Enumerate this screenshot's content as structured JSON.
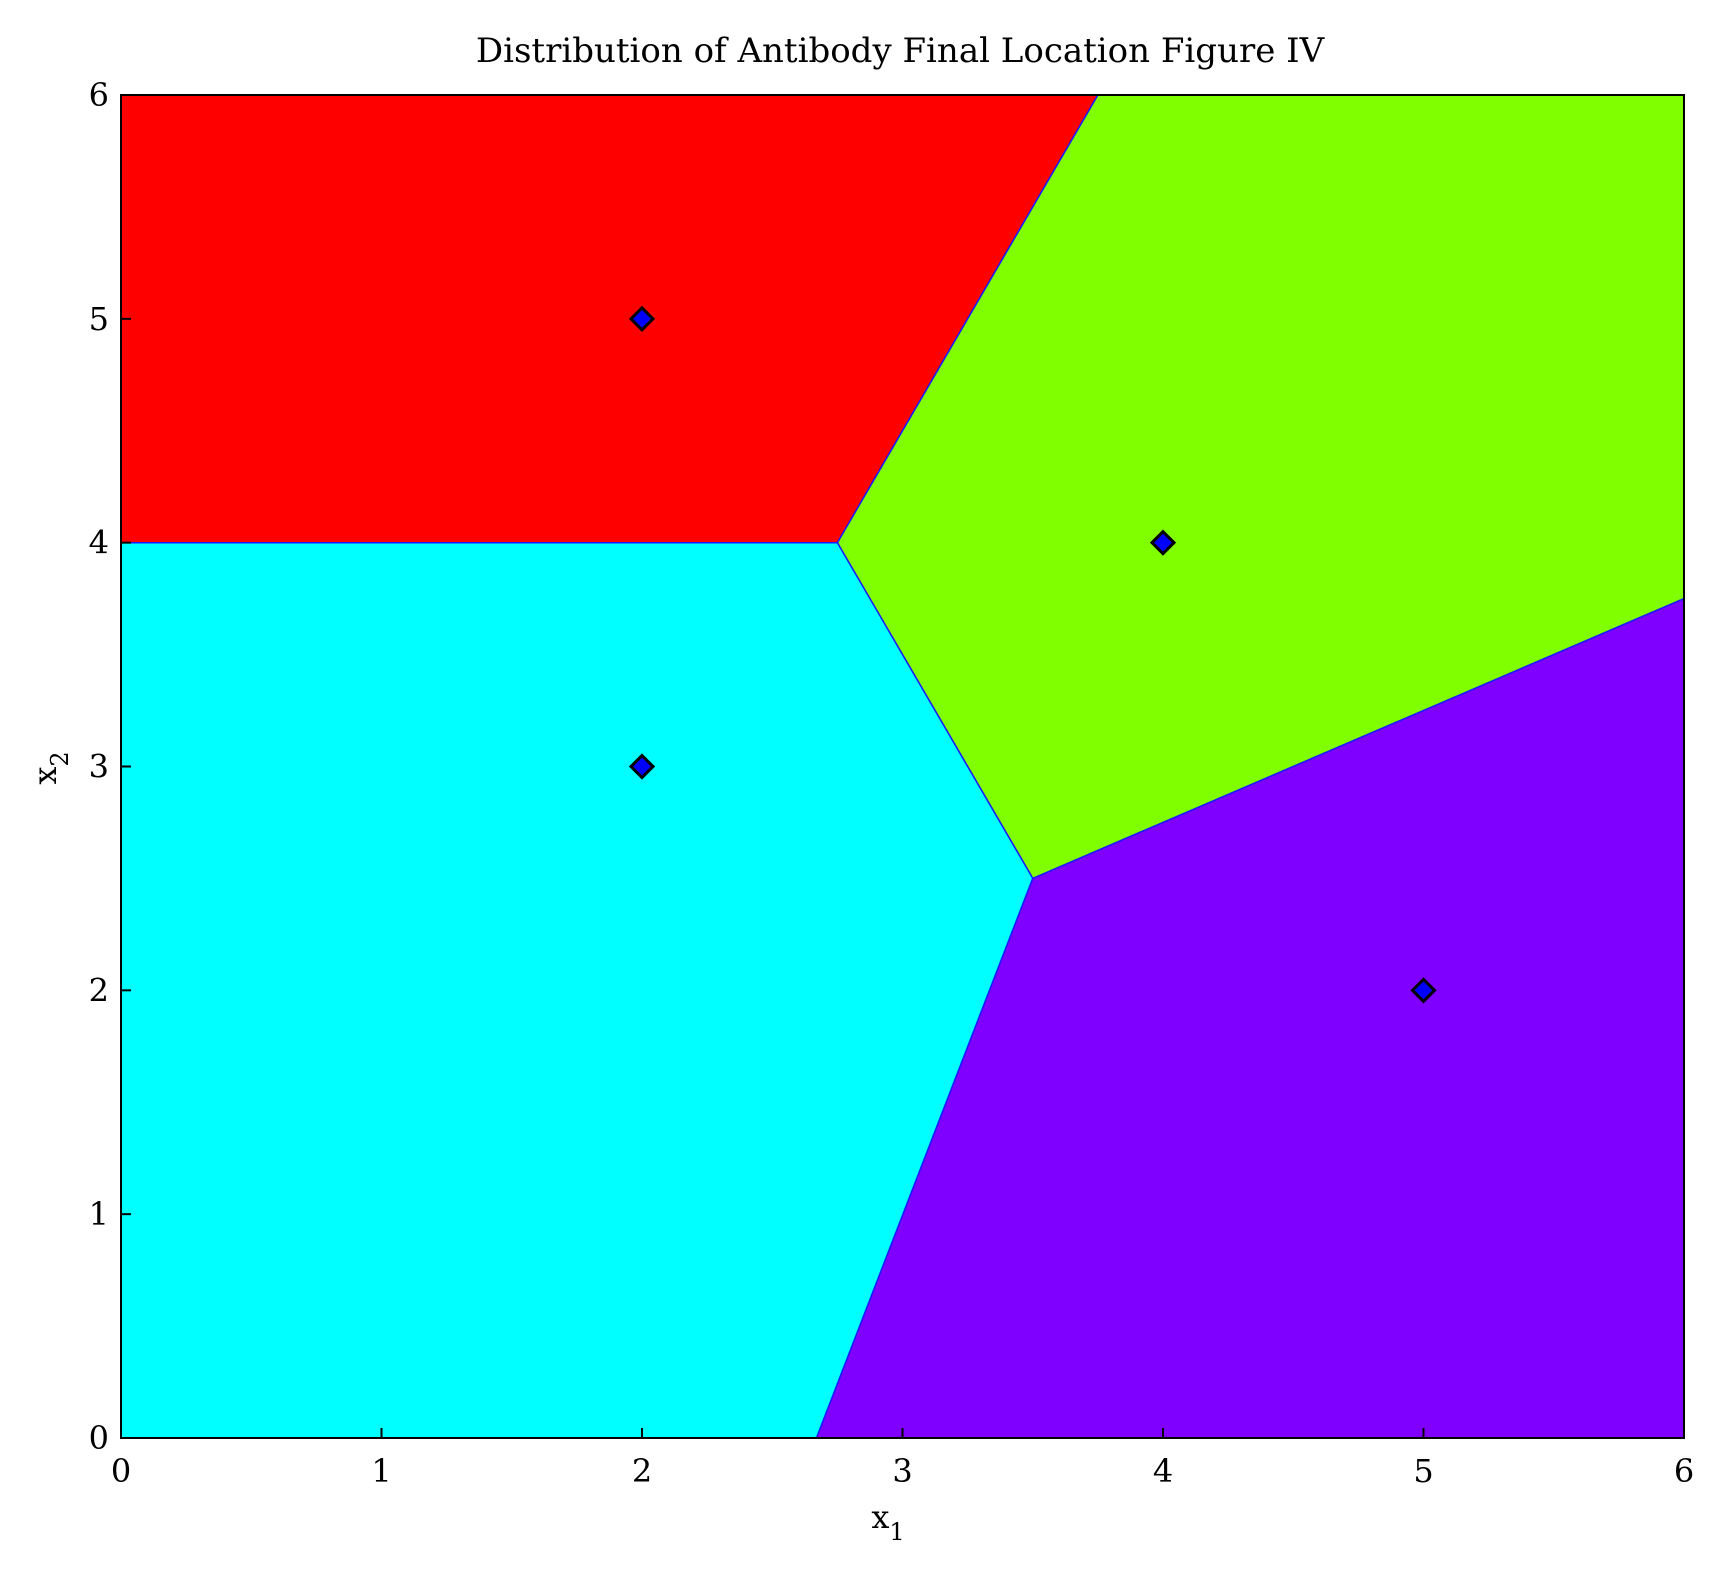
{
  "chart_data": {
    "type": "scatter",
    "title": "Distribution of Antibody Final Location Figure IV",
    "xlabel": {
      "base": "x",
      "sub": "1"
    },
    "ylabel": {
      "base": "x",
      "sub": "2"
    },
    "xlim": [
      0,
      6
    ],
    "ylim": [
      0,
      6
    ],
    "xticks": [
      0,
      1,
      2,
      3,
      4,
      5,
      6
    ],
    "yticks": [
      0,
      1,
      2,
      3,
      4,
      5,
      6
    ],
    "grid": false,
    "points": [
      {
        "x": 2,
        "y": 5
      },
      {
        "x": 4,
        "y": 4
      },
      {
        "x": 2,
        "y": 3
      },
      {
        "x": 5,
        "y": 2
      }
    ],
    "regions": [
      {
        "color": "#ff0000",
        "polygon": [
          [
            0,
            4
          ],
          [
            2.75,
            4
          ],
          [
            3.75,
            6
          ],
          [
            0,
            6
          ]
        ]
      },
      {
        "color": "#80ff00",
        "polygon": [
          [
            3.75,
            6
          ],
          [
            6,
            6
          ],
          [
            6,
            3.75
          ],
          [
            3.5,
            2.5
          ],
          [
            2.75,
            4
          ]
        ]
      },
      {
        "color": "#00ffff",
        "polygon": [
          [
            0,
            0
          ],
          [
            2.67,
            0
          ],
          [
            3.5,
            2.5
          ],
          [
            2.75,
            4
          ],
          [
            0,
            4
          ]
        ]
      },
      {
        "color": "#8000ff",
        "polygon": [
          [
            2.67,
            0
          ],
          [
            6,
            0
          ],
          [
            6,
            3.75
          ],
          [
            3.5,
            2.5
          ]
        ]
      }
    ],
    "marker_color": "#0000ff",
    "marker_edge_color": "#000000"
  }
}
